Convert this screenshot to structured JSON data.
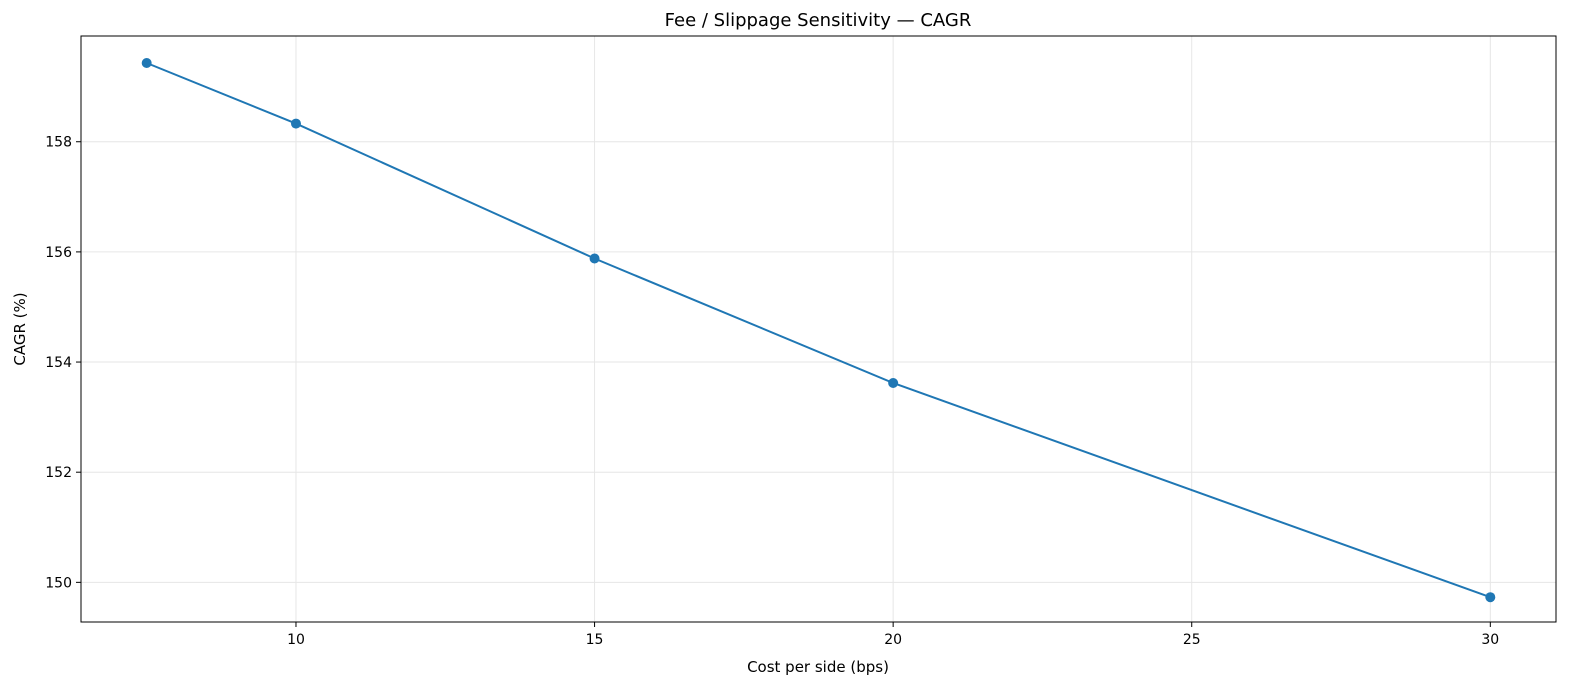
{
  "chart_data": {
    "type": "line",
    "title": "Fee / Slippage Sensitivity — CAGR",
    "xlabel": "Cost per side (bps)",
    "ylabel": "CAGR (%)",
    "x": [
      7.5,
      10,
      15,
      20,
      30
    ],
    "series": [
      {
        "values": [
          159.43,
          158.33,
          155.88,
          153.62,
          149.73
        ]
      }
    ],
    "xlim": [
      6.4,
      31.1
    ],
    "ylim": [
      149.28,
      159.92
    ],
    "x_ticks": [
      10,
      15,
      20,
      25,
      30
    ],
    "y_ticks": [
      150,
      152,
      154,
      156,
      158
    ],
    "x_tick_labels": [
      "10",
      "15",
      "20",
      "25",
      "30"
    ],
    "y_tick_labels": [
      "150",
      "152",
      "154",
      "156",
      "158"
    ],
    "grid": true,
    "legend": false,
    "series_color": "#1f77b4"
  }
}
